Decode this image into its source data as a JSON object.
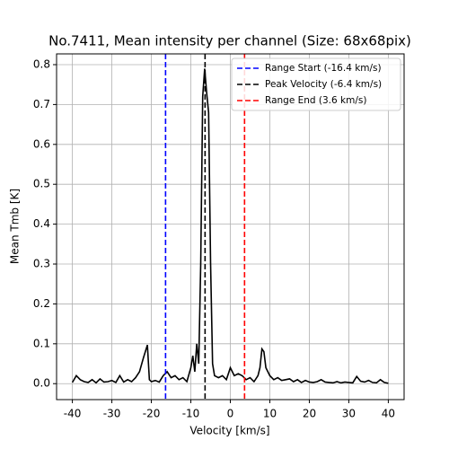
{
  "chart_data": {
    "type": "line",
    "title": "No.7411, Mean intensity per channel (Size: 68x68pix)",
    "x_label": "Velocity [km/s]",
    "y_label": "Mean Tmb [K]",
    "xlim": [
      -44,
      44
    ],
    "ylim": [
      -0.04,
      0.827
    ],
    "xticks": [
      -40,
      -30,
      -20,
      -10,
      0,
      10,
      20,
      30,
      40
    ],
    "yticks": [
      {
        "value": 0,
        "label": "0.0"
      },
      0.1,
      0.2,
      0.3,
      0.4,
      0.5,
      0.6,
      0.7,
      0.8
    ],
    "grid": true,
    "legend": "upper right",
    "x": [
      -40,
      -39,
      -38,
      -37,
      -36,
      -35,
      -34,
      -33,
      -32,
      -31,
      -30,
      -29,
      -28,
      -27,
      -26,
      -25,
      -24,
      -23,
      -22,
      -21,
      -20.5,
      -20,
      -19,
      -18,
      -17,
      -16,
      -15,
      -14,
      -13,
      -12,
      -11,
      -10,
      -9.5,
      -9,
      -8.5,
      -8,
      -7.5,
      -7,
      -6.5,
      -6,
      -5.5,
      -5,
      -4.5,
      -4,
      -3,
      -2,
      -1,
      0,
      1,
      2,
      3,
      4,
      5,
      6,
      7,
      7.5,
      8,
      8.5,
      9,
      10,
      11,
      12,
      13,
      14,
      15,
      16,
      17,
      18,
      19,
      20,
      21,
      22,
      23,
      24,
      25,
      26,
      27,
      28,
      29,
      30,
      31,
      32,
      33,
      34,
      35,
      36,
      37,
      38,
      39,
      40
    ],
    "series": [
      {
        "color": "#000000",
        "values": [
          0.003,
          0.02,
          0.01,
          0.005,
          0.003,
          0.01,
          0.002,
          0.012,
          0.004,
          0.005,
          0.008,
          0.003,
          0.02,
          0.004,
          0.01,
          0.005,
          0.015,
          0.03,
          0.065,
          0.097,
          0.01,
          0.005,
          0.008,
          0.004,
          0.02,
          0.03,
          0.015,
          0.02,
          0.01,
          0.015,
          0.005,
          0.04,
          0.07,
          0.03,
          0.1,
          0.05,
          0.3,
          0.72,
          0.79,
          0.73,
          0.68,
          0.3,
          0.05,
          0.02,
          0.015,
          0.02,
          0.01,
          0.04,
          0.02,
          0.025,
          0.02,
          0.01,
          0.015,
          0.005,
          0.02,
          0.04,
          0.087,
          0.08,
          0.04,
          0.02,
          0.01,
          0.015,
          0.008,
          0.01,
          0.012,
          0.005,
          0.01,
          0.003,
          0.008,
          0.004,
          0.003,
          0.005,
          0.01,
          0.004,
          0.003,
          0.002,
          0.005,
          0.002,
          0.004,
          0.003,
          0.002,
          0.018,
          0.006,
          0.004,
          0.008,
          0.003,
          0.002,
          0.01,
          0.003,
          0.001
        ]
      }
    ],
    "vlines": [
      {
        "x": -16.4,
        "label": "Range Start (-16.4 km/s)",
        "color": "#0000ff"
      },
      {
        "x": -6.4,
        "label": "Peak Velocity (-6.4 km/s)",
        "color": "#000000"
      },
      {
        "x": 3.6,
        "label": "Range End (3.6 km/s)",
        "color": "#ff0000"
      }
    ]
  }
}
